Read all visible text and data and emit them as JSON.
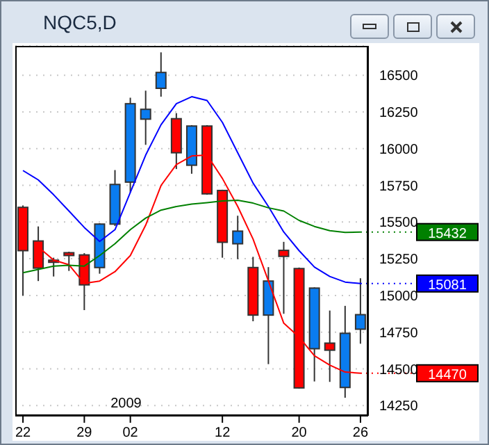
{
  "chart_data": {
    "type": "candlestick",
    "title": "NQC5,D",
    "categories": [
      "22",
      null,
      null,
      null,
      "29",
      null,
      null,
      "02",
      null,
      null,
      null,
      null,
      null,
      "12",
      null,
      null,
      null,
      null,
      "20",
      null,
      null,
      null,
      "26"
    ],
    "ohlc": [
      [
        15600,
        15613,
        14998,
        15305
      ],
      [
        15371,
        15470,
        15098,
        15186
      ],
      [
        15240,
        15257,
        15129,
        15230
      ],
      [
        15291,
        15298,
        15167,
        15272
      ],
      [
        15276,
        15288,
        14900,
        15072
      ],
      [
        15190,
        15492,
        15148,
        15486
      ],
      [
        15486,
        15854,
        15473,
        15756
      ],
      [
        15772,
        16347,
        15702,
        16306
      ],
      [
        16201,
        16395,
        16026,
        16268
      ],
      [
        16411,
        16656,
        16354,
        16519
      ],
      [
        16204,
        16242,
        15861,
        15972
      ],
      [
        15887,
        16160,
        15829,
        16154
      ],
      [
        16154,
        16160,
        15686,
        15692
      ],
      [
        15715,
        15720,
        15257,
        15362
      ],
      [
        15352,
        15543,
        15247,
        15438
      ],
      [
        15190,
        15263,
        14824,
        14866
      ],
      [
        14866,
        15193,
        14532,
        15098
      ],
      [
        15307,
        15365,
        14875,
        15266
      ],
      [
        15183,
        15190,
        14365,
        14370
      ],
      [
        14637,
        15055,
        14414,
        15050
      ],
      [
        14675,
        14897,
        14411,
        14627
      ],
      [
        14373,
        14929,
        14303,
        14742
      ],
      [
        14770,
        15117,
        14671,
        14869
      ]
    ],
    "colors": [
      "#ff0000",
      "#ff0000",
      "#ff0000",
      "#ff0000",
      "#ff0000",
      "#0a7cf0",
      "#0a7cf0",
      "#0a7cf0",
      "#0a7cf0",
      "#0a7cf0",
      "#ff0000",
      "#0a7cf0",
      "#ff0000",
      "#ff0000",
      "#0a7cf0",
      "#ff0000",
      "#0a7cf0",
      "#ff0000",
      "#ff0000",
      "#0a7cf0",
      "#ff0000",
      "#0a7cf0",
      "#0a7cf0"
    ],
    "series": [
      {
        "type": "line",
        "color": "#0000ff",
        "values": [
          15851,
          15787,
          15686,
          15575,
          15463,
          15368,
          15448,
          15702,
          15956,
          16163,
          16306,
          16354,
          16328,
          16179,
          15972,
          15765,
          15606,
          15432,
          15305,
          15193,
          15129,
          15091,
          15081
        ]
      },
      {
        "type": "line",
        "color": "#ff0000",
        "values": [
          null,
          15330,
          15241,
          15209,
          15082,
          15098,
          15162,
          15272,
          15479,
          15749,
          15892,
          15950,
          15956,
          15797,
          15606,
          15384,
          15098,
          14811,
          14716,
          14589,
          14525,
          14478,
          14470
        ]
      },
      {
        "type": "line",
        "color": "#008000",
        "values": [
          15155,
          15177,
          15200,
          15206,
          15200,
          15272,
          15352,
          15448,
          15527,
          15581,
          15606,
          15622,
          15632,
          15644,
          15648,
          15629,
          15597,
          15575,
          15511,
          15470,
          15441,
          15429,
          15432
        ]
      }
    ],
    "ylim": [
      14180,
      16700
    ],
    "yticks": [
      14250,
      14500,
      14750,
      15000,
      15250,
      15500,
      15750,
      16000,
      16250,
      16500
    ],
    "grid": "y",
    "annotations": [
      "2009"
    ],
    "ref_lines": [
      {
        "axis": "y",
        "value": 15432,
        "label": "15432",
        "color": "#008000"
      },
      {
        "axis": "y",
        "value": 15081,
        "label": "15081",
        "color": "#0000ff"
      },
      {
        "axis": "y",
        "value": 14470,
        "label": "14470",
        "color": "#ff0000"
      }
    ]
  }
}
